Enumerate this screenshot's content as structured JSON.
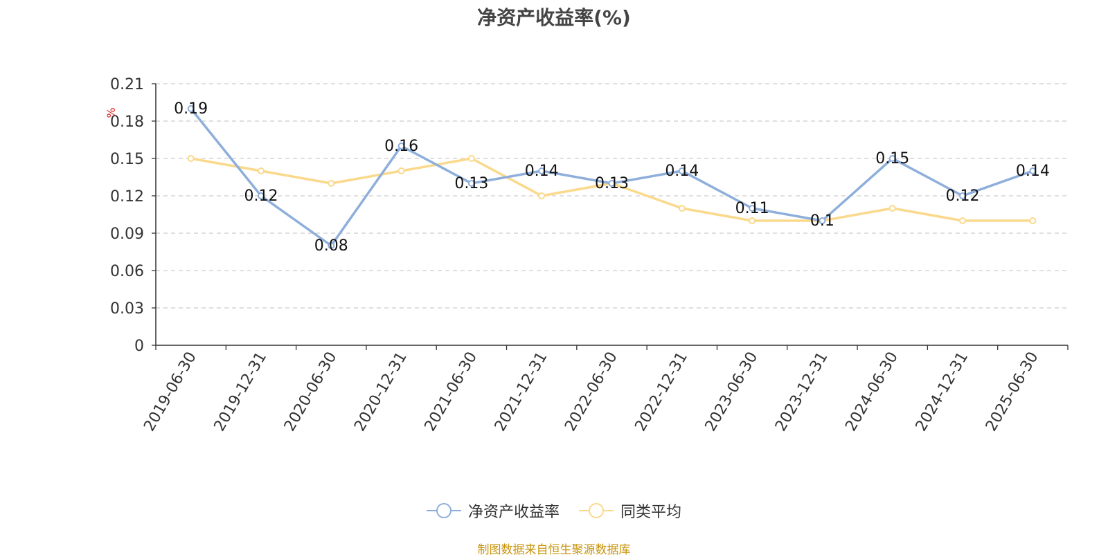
{
  "chart_data": {
    "type": "line",
    "title": "净资产收益率(%)",
    "ylabel": "%",
    "ylim": [
      0,
      0.21
    ],
    "yticks": [
      "0",
      "0.03",
      "0.06",
      "0.09",
      "0.12",
      "0.15",
      "0.18",
      "0.21"
    ],
    "grid": true,
    "legend_position": "bottom",
    "categories": [
      "2019-06-30",
      "2019-12-31",
      "2020-06-30",
      "2020-12-31",
      "2021-06-30",
      "2021-12-31",
      "2022-06-30",
      "2022-12-31",
      "2023-06-30",
      "2023-12-31",
      "2024-06-30",
      "2024-12-31",
      "2025-06-30"
    ],
    "series": [
      {
        "name": "净资产收益率",
        "color": "#8eaedb",
        "labels": true,
        "values": [
          0.19,
          0.12,
          0.08,
          0.16,
          0.13,
          0.14,
          0.13,
          0.14,
          0.11,
          0.1,
          0.15,
          0.12,
          0.14
        ],
        "value_labels": [
          "0.19",
          "0.12",
          "0.08",
          "0.16",
          "0.13",
          "0.14",
          "0.13",
          "0.14",
          "0.11",
          "0.1",
          "0.15",
          "0.12",
          "0.14"
        ]
      },
      {
        "name": "同类平均",
        "color": "#fad98c",
        "labels": false,
        "values": [
          0.15,
          0.14,
          0.13,
          0.14,
          0.15,
          0.12,
          0.13,
          0.11,
          0.1,
          0.1,
          0.11,
          0.1,
          0.1
        ]
      }
    ]
  },
  "footer": {
    "source": "制图数据来自恒生聚源数据库"
  }
}
